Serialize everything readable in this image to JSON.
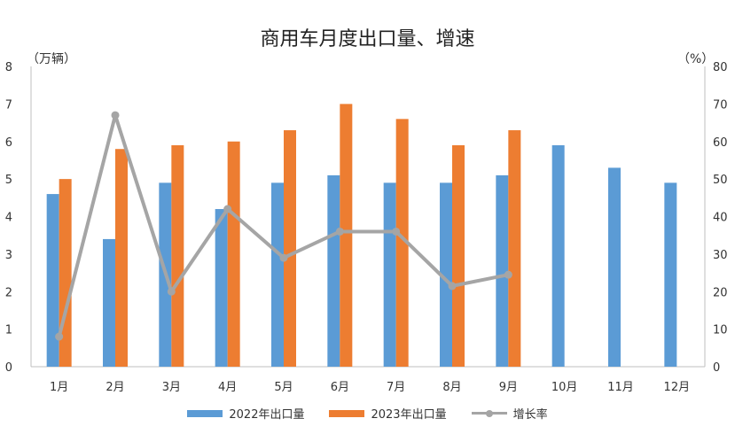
{
  "chart_data": {
    "type": "bar",
    "title": "商用车月度出口量、增速",
    "y_left_unit": "（万辆）",
    "y_right_unit": "（%）",
    "categories": [
      "1月",
      "2月",
      "3月",
      "4月",
      "5月",
      "6月",
      "7月",
      "8月",
      "9月",
      "10月",
      "11月",
      "12月"
    ],
    "ylim": [
      0,
      8
    ],
    "y2lim": [
      0,
      80
    ],
    "yticks": [
      "0",
      "1",
      "2",
      "3",
      "4",
      "5",
      "6",
      "7",
      "8"
    ],
    "y2ticks": [
      "0",
      "10",
      "20",
      "30",
      "40",
      "50",
      "60",
      "70",
      "80"
    ],
    "series": [
      {
        "name": "2022年出口量",
        "type": "bar",
        "axis": "left",
        "color": "#5b9bd5",
        "values": [
          4.6,
          3.4,
          4.9,
          4.2,
          4.9,
          5.1,
          4.9,
          4.9,
          5.1,
          5.9,
          5.3,
          4.9
        ]
      },
      {
        "name": "2023年出口量",
        "type": "bar",
        "axis": "left",
        "color": "#ed7d31",
        "values": [
          5.0,
          5.8,
          5.9,
          6.0,
          6.3,
          7.0,
          6.6,
          5.9,
          6.3,
          null,
          null,
          null
        ]
      },
      {
        "name": "增长率",
        "type": "line",
        "axis": "right",
        "color": "#a5a5a5",
        "values": [
          8,
          67,
          20,
          42,
          29,
          36,
          36,
          21.5,
          24.5,
          null,
          null,
          null
        ]
      }
    ],
    "legend_position": "bottom",
    "grid": false
  }
}
